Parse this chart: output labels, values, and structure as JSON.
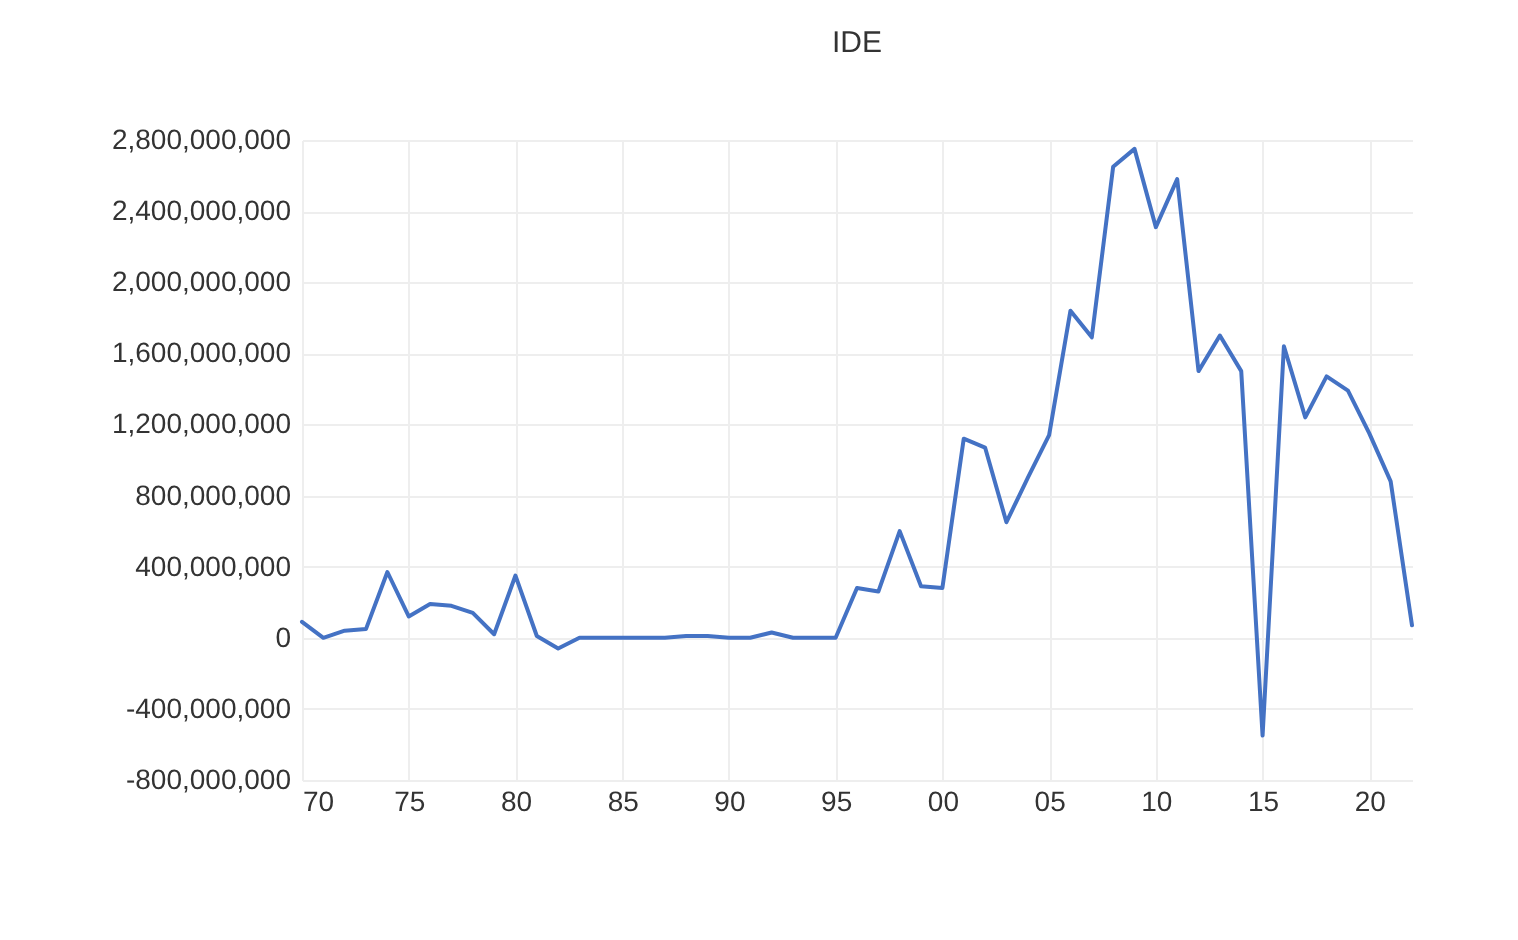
{
  "chart_data": {
    "type": "line",
    "title": "IDE",
    "x": [
      1970,
      1971,
      1972,
      1973,
      1974,
      1975,
      1976,
      1977,
      1978,
      1979,
      1980,
      1981,
      1982,
      1983,
      1984,
      1985,
      1986,
      1987,
      1988,
      1989,
      1990,
      1991,
      1992,
      1993,
      1994,
      1995,
      1996,
      1997,
      1998,
      1999,
      2000,
      2001,
      2002,
      2003,
      2004,
      2005,
      2006,
      2007,
      2008,
      2009,
      2010,
      2011,
      2012,
      2013,
      2014,
      2015,
      2016,
      2017,
      2018,
      2019,
      2020,
      2021,
      2022
    ],
    "series": [
      {
        "color": "#4472c4",
        "values": [
          90000000,
          0,
          40000000,
          50000000,
          370000000,
          120000000,
          190000000,
          180000000,
          140000000,
          20000000,
          350000000,
          10000000,
          -60000000,
          0,
          0,
          0,
          0,
          0,
          10000000,
          10000000,
          0,
          0,
          30000000,
          0,
          0,
          0,
          280000000,
          260000000,
          600000000,
          290000000,
          280000000,
          1120000000,
          1070000000,
          650000000,
          900000000,
          1140000000,
          1840000000,
          1690000000,
          2650000000,
          2750000000,
          2310000000,
          2580000000,
          1500000000,
          1700000000,
          1500000000,
          -550000000,
          1640000000,
          1240000000,
          1470000000,
          1390000000,
          1150000000,
          880000000,
          70000000
        ]
      }
    ],
    "xlim": [
      1970,
      2022
    ],
    "xticks": [
      {
        "value": 1970,
        "label": "70"
      },
      {
        "value": 1975,
        "label": "75"
      },
      {
        "value": 1980,
        "label": "80"
      },
      {
        "value": 1985,
        "label": "85"
      },
      {
        "value": 1990,
        "label": "90"
      },
      {
        "value": 1995,
        "label": "95"
      },
      {
        "value": 2000,
        "label": "00"
      },
      {
        "value": 2005,
        "label": "05"
      },
      {
        "value": 2010,
        "label": "10"
      },
      {
        "value": 2015,
        "label": "15"
      },
      {
        "value": 2020,
        "label": "20"
      }
    ],
    "ylim": [
      -800000000,
      2800000000
    ],
    "yticks": [
      {
        "value": -800000000,
        "label": "-800,000,000"
      },
      {
        "value": -400000000,
        "label": "-400,000,000"
      },
      {
        "value": 0,
        "label": "0"
      },
      {
        "value": 400000000,
        "label": "400,000,000"
      },
      {
        "value": 800000000,
        "label": "800,000,000"
      },
      {
        "value": 1200000000,
        "label": "1,200,000,000"
      },
      {
        "value": 1600000000,
        "label": "1,600,000,000"
      },
      {
        "value": 2000000000,
        "label": "2,000,000,000"
      },
      {
        "value": 2400000000,
        "label": "2,400,000,000"
      },
      {
        "value": 2800000000,
        "label": "2,800,000,000"
      }
    ],
    "grid": true,
    "marker": "none",
    "line_style": "solid"
  }
}
